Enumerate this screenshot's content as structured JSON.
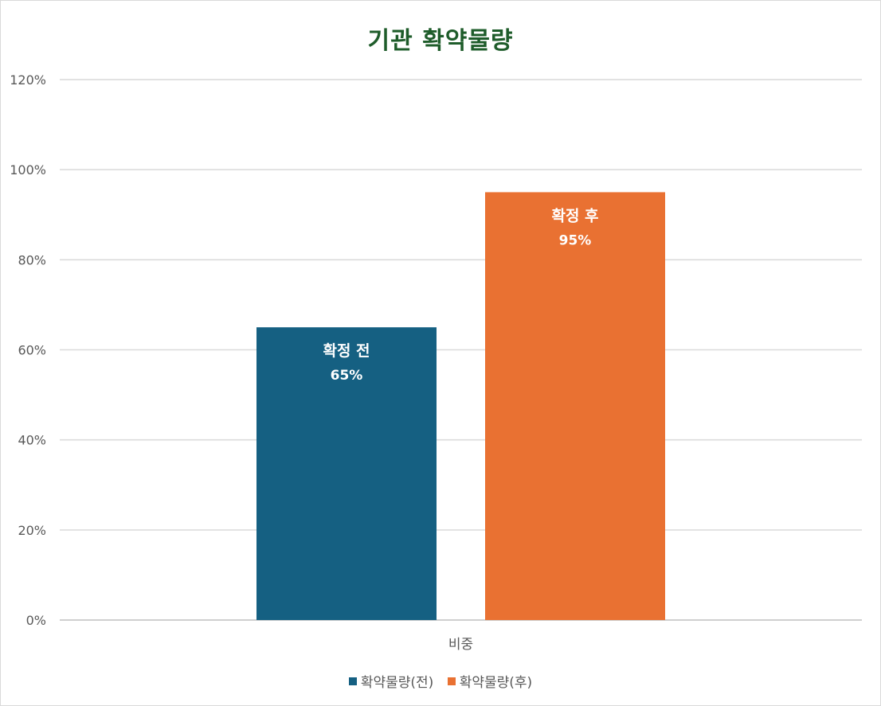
{
  "chart_data": {
    "type": "bar",
    "title": "기관 확약물량",
    "categories": [
      "비중"
    ],
    "series": [
      {
        "name": "확약물량(전)",
        "color": "#156082",
        "values": [
          65
        ],
        "data_label_name": "확정 전",
        "data_label_value": "65%"
      },
      {
        "name": "확약물량(후)",
        "color": "#e97132",
        "values": [
          95
        ],
        "data_label_name": "확정 후",
        "data_label_value": "95%"
      }
    ],
    "ylim": [
      0,
      120
    ],
    "yticks": [
      "0%",
      "20%",
      "40%",
      "60%",
      "80%",
      "100%",
      "120%"
    ],
    "ytick_values": [
      0,
      20,
      40,
      60,
      80,
      100,
      120
    ],
    "grid": true,
    "legend_position": "bottom",
    "xlabel": "",
    "ylabel": ""
  }
}
